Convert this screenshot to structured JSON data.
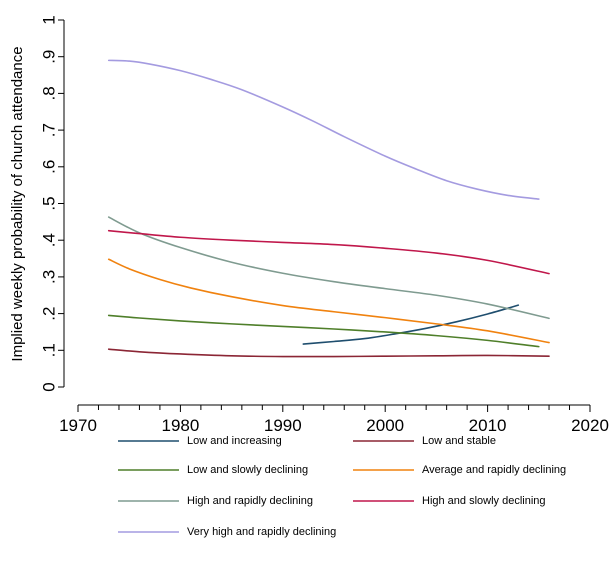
{
  "chart_data": {
    "type": "line",
    "title": "",
    "xlabel": "",
    "ylabel": "Implied weekly probability of church attendance",
    "xlim": [
      1970,
      2020
    ],
    "ylim": [
      0,
      1
    ],
    "x_ticks": [
      1970,
      1980,
      1990,
      2000,
      2010,
      2020
    ],
    "x_minor_step": 2,
    "y_ticks": [
      0,
      0.1,
      0.2,
      0.3,
      0.4,
      0.5,
      0.6,
      0.7,
      0.8,
      0.9,
      1
    ],
    "y_tick_labels": [
      "0",
      ".1",
      ".2",
      ".3",
      ".4",
      ".5",
      ".6",
      ".7",
      ".8",
      ".9",
      "1"
    ],
    "grid": false,
    "legend_position": "bottom",
    "series": [
      {
        "name": "Low and  increasing",
        "color": "#1f4e6e",
        "x": [
          1992,
          1995,
          1998,
          2001,
          2004,
          2007,
          2010,
          2013
        ],
        "y": [
          0.117,
          0.124,
          0.132,
          0.145,
          0.16,
          0.178,
          0.199,
          0.223
        ]
      },
      {
        "name": "Low and stable",
        "color": "#8b2635",
        "x": [
          1973,
          1976,
          1980,
          1985,
          1990,
          1995,
          2000,
          2005,
          2010,
          2016
        ],
        "y": [
          0.103,
          0.096,
          0.09,
          0.085,
          0.083,
          0.083,
          0.084,
          0.085,
          0.086,
          0.084
        ]
      },
      {
        "name": "Low and slowly declining",
        "color": "#4f7f2a",
        "x": [
          1973,
          1976,
          1980,
          1985,
          1990,
          1995,
          2000,
          2005,
          2010,
          2015
        ],
        "y": [
          0.195,
          0.188,
          0.18,
          0.172,
          0.165,
          0.158,
          0.15,
          0.14,
          0.127,
          0.11
        ]
      },
      {
        "name": "Average and rapidly declining",
        "color": "#f0820f",
        "x": [
          1973,
          1975,
          1978,
          1981,
          1985,
          1990,
          1995,
          2000,
          2005,
          2010,
          2016
        ],
        "y": [
          0.348,
          0.322,
          0.293,
          0.27,
          0.246,
          0.222,
          0.205,
          0.189,
          0.172,
          0.153,
          0.121
        ]
      },
      {
        "name": "High and rapidly declining",
        "color": "#7f9b90",
        "x": [
          1973,
          1976,
          1980,
          1985,
          1990,
          1995,
          2000,
          2005,
          2010,
          2016
        ],
        "y": [
          0.463,
          0.42,
          0.38,
          0.34,
          0.31,
          0.287,
          0.268,
          0.25,
          0.226,
          0.187
        ]
      },
      {
        "name": "High and slowly declining",
        "color": "#c0174b",
        "x": [
          1973,
          1976,
          1980,
          1985,
          1990,
          1995,
          2000,
          2005,
          2010,
          2016
        ],
        "y": [
          0.426,
          0.418,
          0.408,
          0.4,
          0.394,
          0.388,
          0.378,
          0.365,
          0.345,
          0.309
        ]
      },
      {
        "name": "Very high and rapidly declining",
        "color": "#a49be0",
        "x": [
          1973,
          1975,
          1977,
          1980,
          1983,
          1986,
          1990,
          1993,
          1996,
          2000,
          2003,
          2006,
          2009,
          2012,
          2015
        ],
        "y": [
          0.89,
          0.888,
          0.88,
          0.862,
          0.838,
          0.81,
          0.763,
          0.724,
          0.682,
          0.629,
          0.594,
          0.562,
          0.539,
          0.522,
          0.512
        ]
      }
    ]
  }
}
